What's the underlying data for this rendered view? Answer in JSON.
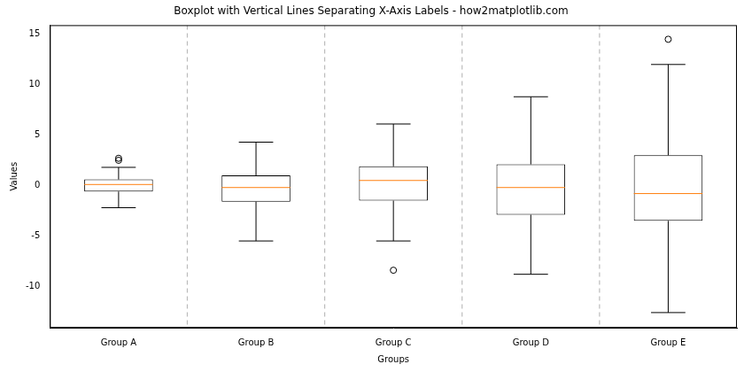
{
  "chart_data": {
    "type": "boxplot",
    "title": "Boxplot with Vertical Lines Separating X-Axis Labels - how2matplotlib.com",
    "x_label": "Groups",
    "y_label": "Values",
    "categories": [
      "Group A",
      "Group B",
      "Group C",
      "Group D",
      "Group E"
    ],
    "boxes": [
      {
        "min": -2.2,
        "q1": -0.6,
        "median": 0.1,
        "q3": 0.6,
        "max": 1.8,
        "outliers": [
          2.5,
          2.7
        ]
      },
      {
        "min": -5.5,
        "q1": -1.6,
        "median": -0.2,
        "q3": 1.0,
        "max": 4.3,
        "outliers": []
      },
      {
        "min": -5.5,
        "q1": -1.5,
        "median": 0.5,
        "q3": 1.9,
        "max": 6.1,
        "outliers": [
          -8.4
        ]
      },
      {
        "min": -8.8,
        "q1": -2.9,
        "median": -0.2,
        "q3": 2.1,
        "max": 8.8,
        "outliers": []
      },
      {
        "min": -12.6,
        "q1": -3.5,
        "median": -0.8,
        "q3": 3.0,
        "max": 12.0,
        "outliers": [
          14.5
        ]
      }
    ],
    "ylim": [
      -14.1,
      15.9
    ],
    "yticks": [
      -10,
      -5,
      0,
      5,
      10,
      15
    ],
    "grid": false
  }
}
